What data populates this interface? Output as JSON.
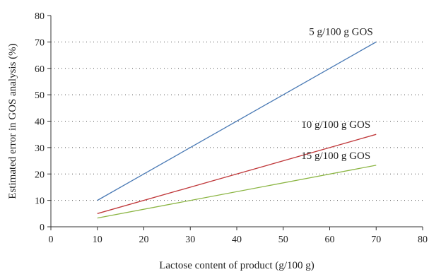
{
  "chart_data": {
    "type": "line",
    "title": "",
    "xlabel": "Lactose content of product (g/100 g)",
    "ylabel": "Estimated error in GOS analysis (%)",
    "xlim": [
      0,
      80
    ],
    "ylim": [
      0,
      80
    ],
    "xticks": [
      0,
      10,
      20,
      30,
      40,
      50,
      60,
      70,
      80
    ],
    "yticks": [
      0,
      10,
      20,
      30,
      40,
      50,
      60,
      70,
      80
    ],
    "grid": "horizontal-dotted",
    "series": [
      {
        "name": "5 g/100 g GOS",
        "color": "#4a7ab5",
        "x": [
          10,
          70
        ],
        "y": [
          10,
          70
        ]
      },
      {
        "name": "10 g/100 g GOS",
        "color": "#c0393b",
        "x": [
          10,
          70
        ],
        "y": [
          5,
          35
        ]
      },
      {
        "name": "15 g/100 g GOS",
        "color": "#8bb543",
        "x": [
          10,
          70
        ],
        "y": [
          3.3,
          23.3
        ]
      }
    ]
  }
}
